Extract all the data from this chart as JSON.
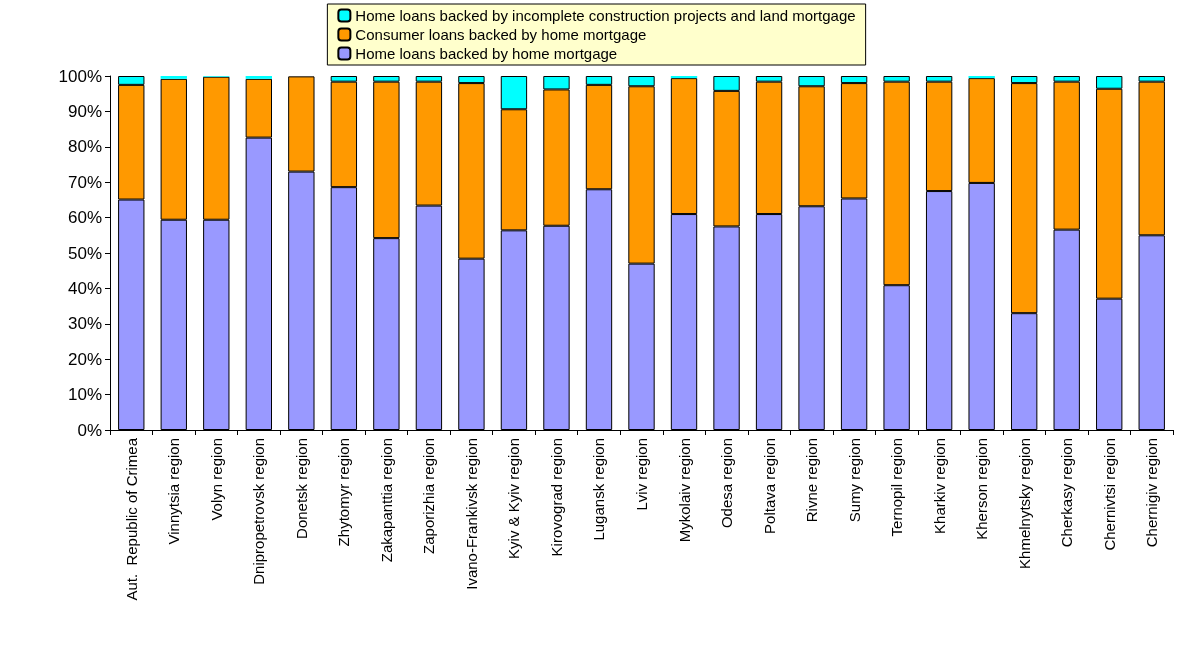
{
  "chart_data": {
    "type": "bar",
    "stacked": true,
    "categories": [
      "Aut.  Republic of Crimea",
      "Vinnytsia region",
      "Volyn region",
      "Dnipropetrovsk region",
      "Donetsk region",
      "Zhytomyr region",
      "Zakapanttia region",
      "Zaporizhia region",
      "Ivano-Frankivsk region",
      "Kyiv & Kyiv region",
      "Kirovograd region",
      "Lugansk region",
      "Lviv region",
      "Mykolaiv region",
      "Odesa region",
      "Poltava region",
      "Rivne region",
      "Sumy region",
      "Ternopil region",
      "Kharkiv region",
      "Kherson region",
      "Khmelnytsky region",
      "Cherkasy region",
      "Chernivtsi region",
      "Chernigiv region"
    ],
    "series": [
      {
        "name": "Home loans backed by home mortgage",
        "color": "#9999ff",
        "values": [
          65.1,
          59.4,
          59.4,
          82.6,
          73.0,
          68.6,
          54.2,
          63.4,
          48.4,
          56.4,
          57.7,
          68.0,
          47.0,
          61.0,
          57.5,
          61.0,
          63.2,
          65.4,
          40.9,
          67.5,
          69.8,
          33,
          56.6,
          37.1,
          55.0
        ]
      },
      {
        "name": "Consumer loans backed by home mortgage",
        "color": "#ff9900",
        "values": [
          32.4,
          39.8,
          40.4,
          16.6,
          26.9,
          29.8,
          44.2,
          35.0,
          49.6,
          34.2,
          38.5,
          29.5,
          50.1,
          38.4,
          38.3,
          37.4,
          33.9,
          32.6,
          57.5,
          30.9,
          29.6,
          65,
          41.8,
          59.3,
          43.4
        ]
      },
      {
        "name": "Home loans backed by incomplete construction projects and land mortgage",
        "color": "#00ffff",
        "values": [
          2.5,
          0.8,
          0.2,
          0.8,
          null,
          1.6,
          1.6,
          1.6,
          2.0,
          9.4,
          3.8,
          2.5,
          2.9,
          0.6,
          4.2,
          1.6,
          2.9,
          2.0,
          1.6,
          1.6,
          0.6,
          2.0,
          1.6,
          3.6,
          1.6
        ]
      }
    ],
    "ylim": [
      0,
      100
    ],
    "yticks": [
      {
        "value": 0,
        "label": "0%"
      },
      {
        "value": 10,
        "label": "10%"
      },
      {
        "value": 20,
        "label": "20%"
      },
      {
        "value": 30,
        "label": "30%"
      },
      {
        "value": 40,
        "label": "40%"
      },
      {
        "value": 50,
        "label": "50%"
      },
      {
        "value": 60,
        "label": "60%"
      },
      {
        "value": 70,
        "label": "70%"
      },
      {
        "value": 80,
        "label": "80%"
      },
      {
        "value": 90,
        "label": "90%"
      },
      {
        "value": 100,
        "label": "100%"
      }
    ],
    "grid": false,
    "legend": "top"
  }
}
